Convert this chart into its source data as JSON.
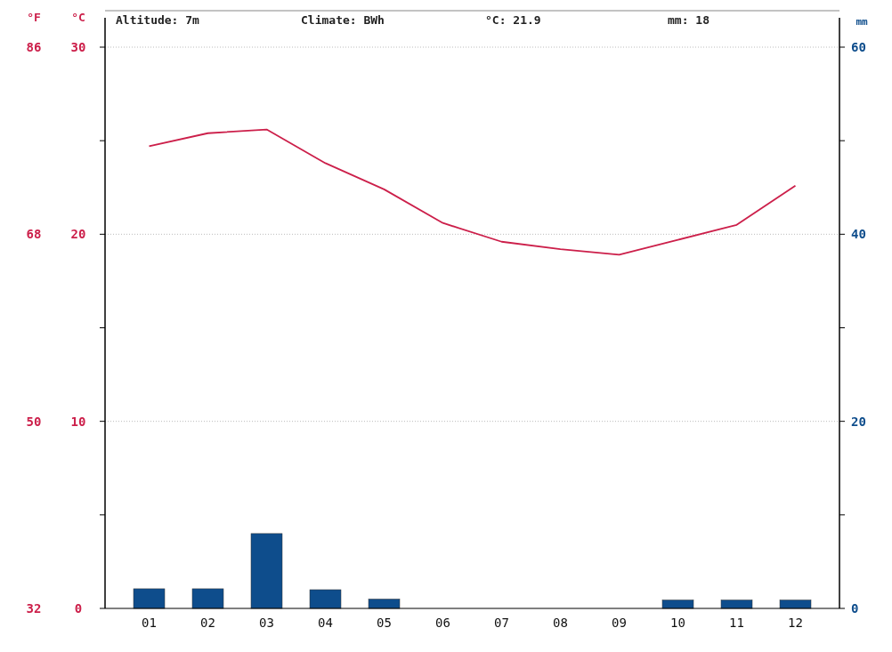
{
  "chart_data": {
    "type": "line",
    "categories": [
      "01",
      "02",
      "03",
      "04",
      "05",
      "06",
      "07",
      "08",
      "09",
      "10",
      "11",
      "12"
    ],
    "series": [
      {
        "color": "#cc1f4a",
        "values": [
          24.7,
          25.4,
          25.6,
          23.8,
          22.4,
          20.6,
          19.6,
          19.2,
          18.9,
          19.7,
          20.5,
          22.6
        ]
      },
      {
        "type": "bar",
        "axis": "y2",
        "color": "#0e4d8c",
        "values": [
          2.1,
          2.1,
          8,
          2,
          1,
          0,
          0,
          0,
          0,
          0.9,
          0.9,
          0.9
        ]
      }
    ],
    "ylim": [
      0,
      30
    ],
    "yticks": [
      0,
      {
        "value": 5,
        "label": null
      },
      10,
      {
        "value": 15,
        "label": null
      },
      20,
      {
        "value": 25,
        "label": null
      },
      30
    ],
    "y3lim": [
      32,
      86
    ],
    "y3ticks": [
      32,
      50,
      68,
      86
    ],
    "y2lim": [
      0,
      60
    ],
    "y2ticks": [
      0,
      {
        "value": 10,
        "label": null
      },
      20,
      {
        "value": 30,
        "label": null
      },
      40,
      {
        "value": 50,
        "label": null
      },
      60
    ],
    "ylabel": "°C",
    "y3label": "°F",
    "y2label": "mm",
    "grid": "y",
    "annotations": [
      "Altitude: 7m",
      "Climate: BWh",
      "°C: 21.9",
      "mm: 18"
    ]
  }
}
